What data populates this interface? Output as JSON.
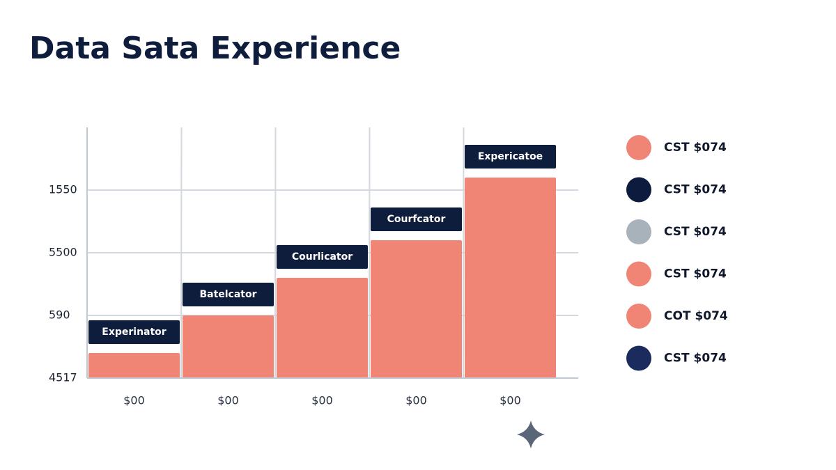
{
  "chart_data": {
    "type": "bar",
    "title": "Data Sata Experience",
    "categories": [
      "$00",
      "$00",
      "$00",
      "$00",
      "$00"
    ],
    "values": [
      0.4,
      1.0,
      1.6,
      2.2,
      3.2
    ],
    "annotations": [
      "Experinator",
      "Batelcator",
      "Courlicator",
      "Courfcator",
      "Expericatoe"
    ],
    "color": "#f08576",
    "annotation_color": "#0f1d3d",
    "ylim": [
      0,
      4
    ],
    "yticks": [
      {
        "value": 0,
        "label": "4517"
      },
      {
        "value": 1,
        "label": "590"
      },
      {
        "value": 2,
        "label": "5500"
      },
      {
        "value": 3,
        "label": "1550"
      }
    ],
    "grid": true,
    "legend": [
      {
        "label": "CST $074",
        "color": "#f08576"
      },
      {
        "label": "CST $074",
        "color": "#0d1b3e"
      },
      {
        "label": "CST $074",
        "color": "#a8b2bb"
      },
      {
        "label": "CST $074",
        "color": "#f08576"
      },
      {
        "label": "COT $074",
        "color": "#f08576"
      },
      {
        "label": "CST $074",
        "color": "#1b2b5e"
      }
    ]
  }
}
